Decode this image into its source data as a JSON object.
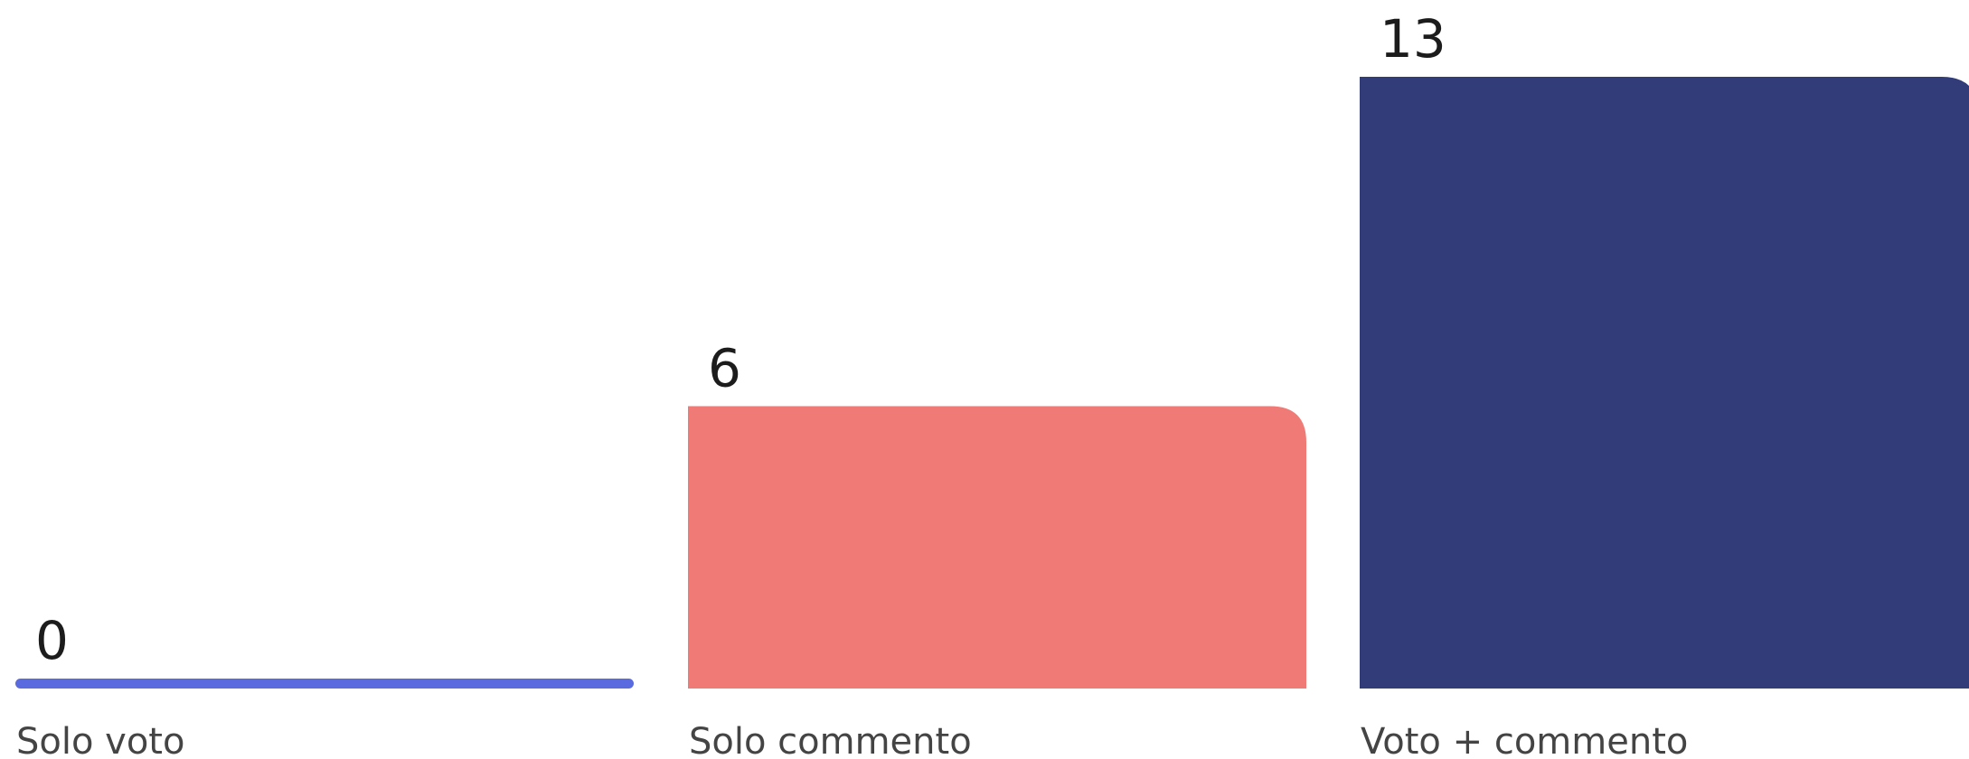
{
  "chart_data": {
    "type": "bar",
    "categories": [
      "Solo voto",
      "Solo commento",
      "Voto + commento"
    ],
    "values": [
      0,
      6,
      13
    ],
    "colors": [
      "#5a6be0",
      "#f07a76",
      "#323c78"
    ],
    "title": "",
    "xlabel": "",
    "ylabel": "",
    "ylim": [
      0,
      13
    ],
    "grid": false,
    "legend": "none"
  }
}
